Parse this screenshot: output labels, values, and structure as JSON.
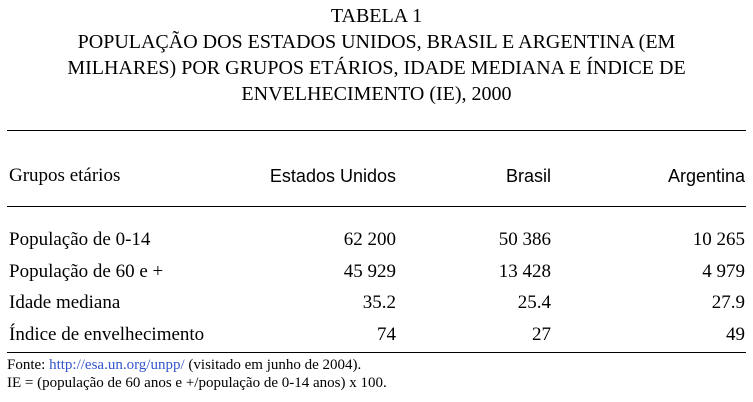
{
  "header": {
    "label": "TABELA 1",
    "title_lines": [
      "POPULAÇÃO DOS ESTADOS UNIDOS, BRASIL E ARGENTINA (EM",
      "MILHARES) POR GRUPOS ETÁRIOS, IDADE MEDIANA E ÍNDICE DE",
      "ENVELHECIMENTO (IE), 2000"
    ]
  },
  "table": {
    "columns": [
      "Grupos etários",
      "Estados Unidos",
      "Brasil",
      "Argentina"
    ],
    "rows": [
      [
        "População de 0-14",
        "62 200",
        "50 386",
        "10 265"
      ],
      [
        "População de 60 e +",
        "45 929",
        "13 428",
        "4 979"
      ],
      [
        "Idade mediana",
        "35.2",
        "25.4",
        "27.9"
      ],
      [
        "Índice de envelhecimento",
        "74",
        "27",
        "49"
      ]
    ]
  },
  "footer": {
    "source_label": "Fonte:",
    "source_link": "http://esa.un.org/unpp/",
    "source_note": "(visitado em junho de 2004).",
    "formula": "IE = (população de 60 anos e +/população de 0-14 anos) x 100."
  }
}
